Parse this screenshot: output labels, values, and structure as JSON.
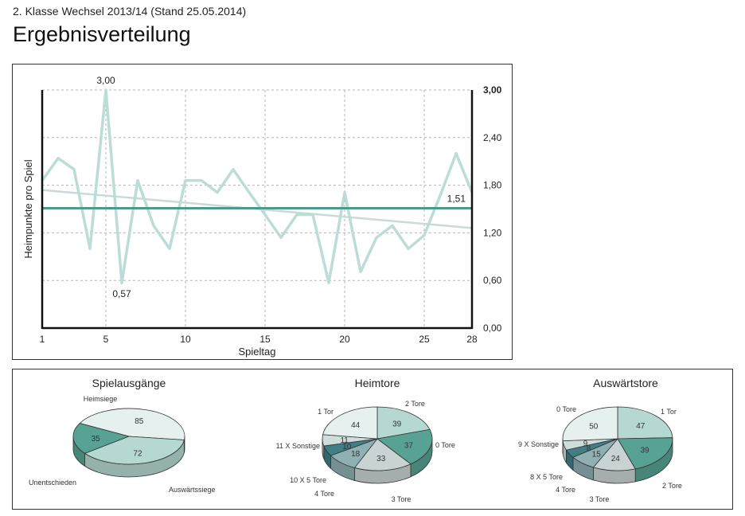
{
  "header": {
    "subtitle": "2. Klasse Wechsel 2013/14 (Stand 25.05.2014)",
    "title": "Ergebnisverteilung"
  },
  "colors": {
    "line": "#bcdcd8",
    "mean": "#4e9a8a",
    "trend": "#c9dbd9",
    "grid": "#b5b5b5",
    "axis": "#111111"
  },
  "chart_data": [
    {
      "type": "line",
      "title": "",
      "xlabel": "Spieltag",
      "ylabel": "Heimpunkte pro Spiel",
      "xlim": [
        1,
        28
      ],
      "ylim": [
        0,
        3
      ],
      "x_ticks": [
        1,
        5,
        10,
        15,
        20,
        25,
        28
      ],
      "x_gridlines": [
        5,
        10,
        15,
        20,
        25,
        28
      ],
      "y_ticks": [
        {
          "value": 0,
          "label": "0,00"
        },
        {
          "value": 0.6,
          "label": "0,60"
        },
        {
          "value": 1.2,
          "label": "1,20"
        },
        {
          "value": 1.8,
          "label": "1,80"
        },
        {
          "value": 2.4,
          "label": "2,40"
        },
        {
          "value": 3.0,
          "label": "3,00"
        }
      ],
      "grid": true,
      "series": [
        {
          "name": "Heimpunkte pro Spiel",
          "x": [
            1,
            2,
            3,
            4,
            5,
            6,
            7,
            8,
            9,
            10,
            11,
            12,
            13,
            14,
            15,
            16,
            17,
            18,
            19,
            20,
            21,
            22,
            23,
            24,
            25,
            26,
            27,
            28
          ],
          "values": [
            1.86,
            2.14,
            2.0,
            1.0,
            3.0,
            0.57,
            1.86,
            1.29,
            1.0,
            1.86,
            1.86,
            1.71,
            2.0,
            1.71,
            1.43,
            1.14,
            1.43,
            1.43,
            0.57,
            1.71,
            0.71,
            1.14,
            1.29,
            1.0,
            1.17,
            1.67,
            2.2,
            1.71
          ]
        }
      ],
      "mean": {
        "value": 1.51,
        "label": "1,51"
      },
      "trend": {
        "start": 1.74,
        "end": 1.26
      },
      "annotations": [
        {
          "x": 5,
          "y": 3.0,
          "label": "3,00"
        },
        {
          "x": 6,
          "y": 0.57,
          "label": "0,57"
        }
      ]
    },
    {
      "type": "pie",
      "title": "Spielausgänge",
      "slices": [
        {
          "label": "Heimsiege",
          "value": 85,
          "color": "#e6f0ee"
        },
        {
          "label": "Auswärtssiege",
          "value": 72,
          "color": "#b6d8d2"
        },
        {
          "label": "Unentschieden",
          "value": 35,
          "color": "#58a294"
        }
      ]
    },
    {
      "type": "pie",
      "title": "Heimtore",
      "slices": [
        {
          "label": "2 Tore",
          "value": 39,
          "color": "#b6d8d2"
        },
        {
          "label": "0 Tore",
          "value": 37,
          "color": "#58a294"
        },
        {
          "label": "3 Tore",
          "value": 33,
          "color": "#c9d3d3"
        },
        {
          "label": "4 Tore",
          "value": 18,
          "color": "#8fb0b3"
        },
        {
          "label": "10 X 5 Tore",
          "value": 10,
          "color": "#417e86"
        },
        {
          "label": "11 X Sonstige",
          "value": 11,
          "color": "#cfdcdc"
        },
        {
          "label": "1 Tor",
          "value": 44,
          "color": "#e6f0ee"
        }
      ]
    },
    {
      "type": "pie",
      "title": "Auswärtstore",
      "slices": [
        {
          "label": "1 Tor",
          "value": 47,
          "color": "#b6d8d2"
        },
        {
          "label": "2 Tore",
          "value": 39,
          "color": "#58a294"
        },
        {
          "label": "3 Tore",
          "value": 24,
          "color": "#c9d3d3"
        },
        {
          "label": "4 Tore",
          "value": 15,
          "color": "#8fb0b3"
        },
        {
          "label": "8 X 5 Tore",
          "value": 8,
          "color": "#417e86"
        },
        {
          "label": "9 X Sonstige",
          "value": 9,
          "color": "#cfdcdc"
        },
        {
          "label": "0 Tore",
          "value": 50,
          "color": "#e6f0ee"
        }
      ]
    }
  ]
}
